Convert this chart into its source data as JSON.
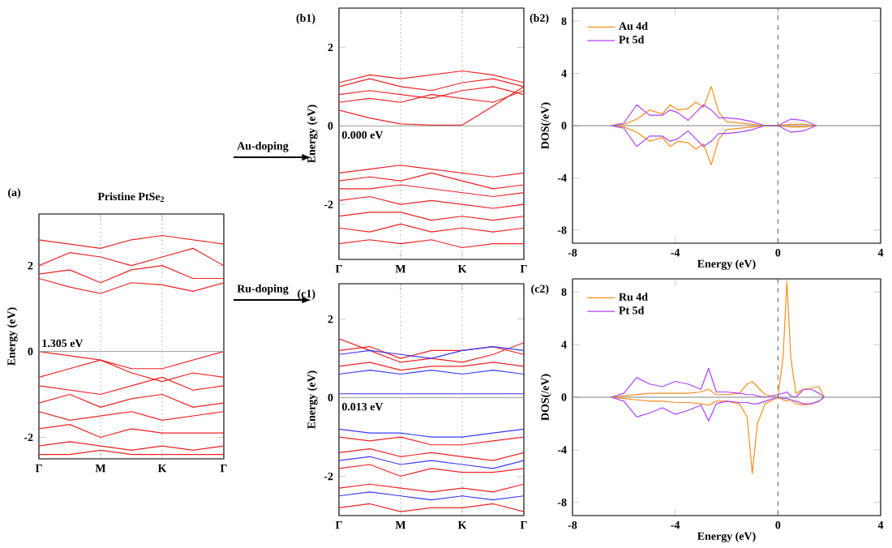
{
  "chart_data": [
    {
      "type": "line",
      "title": "Pristine PtSe$_{2}$",
      "subtitle": "(a)",
      "ylabel": "Energy (eV)",
      "annotations": [
        "1.305 eV",
        "Au-doping",
        "Ru-doping"
      ],
      "categories": [
        "Γ",
        null,
        "M",
        null,
        "K",
        null,
        "Γ"
      ],
      "ylim": [
        -2.5,
        3.2
      ],
      "yticks": [
        -2,
        0,
        2
      ],
      "ref_lines": [
        {
          "axis": "x",
          "value": "M",
          "color": "#808080",
          "line_style": "dotted"
        },
        {
          "axis": "x",
          "value": "K",
          "color": "#808080",
          "line_style": "dotted"
        },
        {
          "axis": "y",
          "value": 0,
          "color": "#a0a0a0",
          "line_style": "solid"
        }
      ],
      "series": [
        {
          "color": "#ee2222",
          "values": [
            1.7,
            1.5,
            1.35,
            1.6,
            1.55,
            1.4,
            1.6
          ]
        },
        {
          "color": "#ee2222",
          "values": [
            1.8,
            1.9,
            1.6,
            1.9,
            2.0,
            1.7,
            1.7
          ]
        },
        {
          "color": "#ee2222",
          "values": [
            2.0,
            2.3,
            2.2,
            2.0,
            2.2,
            2.4,
            2.0
          ]
        },
        {
          "color": "#ee2222",
          "values": [
            2.6,
            2.5,
            2.4,
            2.6,
            2.7,
            2.6,
            2.5
          ]
        },
        {
          "color": "#ee2222",
          "values": [
            0,
            -0.1,
            -0.2,
            -0.4,
            -0.4,
            -0.2,
            0
          ]
        },
        {
          "color": "#ee2222",
          "values": [
            -0.6,
            -0.4,
            -0.2,
            -0.5,
            -0.7,
            -0.5,
            -0.6
          ]
        },
        {
          "color": "#ee2222",
          "values": [
            -0.8,
            -0.9,
            -1.0,
            -0.8,
            -0.6,
            -0.9,
            -0.8
          ]
        },
        {
          "color": "#ee2222",
          "values": [
            -1.2,
            -1.0,
            -1.3,
            -1.1,
            -1.0,
            -1.3,
            -1.2
          ]
        },
        {
          "color": "#ee2222",
          "values": [
            -1.4,
            -1.6,
            -1.5,
            -1.4,
            -1.6,
            -1.5,
            -1.4
          ]
        },
        {
          "color": "#ee2222",
          "values": [
            -1.8,
            -1.7,
            -2.0,
            -1.8,
            -1.9,
            -1.9,
            -1.9
          ]
        },
        {
          "color": "#ee2222",
          "values": [
            -2.2,
            -2.1,
            -2.2,
            -2.3,
            -2.2,
            -2.3,
            -2.2
          ]
        },
        {
          "color": "#ee2222",
          "values": [
            -2.4,
            -2.4,
            -2.3,
            -2.4,
            -2.4,
            -2.4,
            -2.4
          ]
        }
      ]
    },
    {
      "type": "line",
      "subtitle": "(b1)",
      "ylabel": "Energy (eV)",
      "annotations": [
        "0.000 eV"
      ],
      "categories": [
        "Γ",
        null,
        "M",
        null,
        "K",
        null,
        "Γ"
      ],
      "ylim": [
        -3.4,
        3
      ],
      "yticks": [
        -2,
        0,
        2
      ],
      "ref_lines": [
        {
          "axis": "x",
          "value": "M",
          "color": "#808080",
          "line_style": "dotted"
        },
        {
          "axis": "x",
          "value": "K",
          "color": "#808080",
          "line_style": "dotted"
        },
        {
          "axis": "y",
          "value": 0,
          "color": "#a0a0a0",
          "line_style": "solid"
        }
      ],
      "series": [
        {
          "color": "#ee2222",
          "values": [
            0.4,
            0.2,
            0.05,
            0.02,
            0.02,
            0.5,
            1.0
          ]
        },
        {
          "color": "#ee2222",
          "values": [
            0.8,
            0.9,
            0.8,
            0.7,
            0.9,
            1.0,
            0.8
          ]
        },
        {
          "color": "#ee2222",
          "values": [
            1.0,
            1.2,
            1.0,
            0.9,
            1.1,
            1.2,
            1.0
          ]
        },
        {
          "color": "#ee2222",
          "values": [
            0.6,
            0.7,
            0.6,
            0.8,
            0.7,
            0.6,
            0.9
          ]
        },
        {
          "color": "#ee2222",
          "values": [
            1.1,
            1.3,
            1.2,
            1.3,
            1.4,
            1.3,
            1.1
          ]
        },
        {
          "color": "#ee2222",
          "values": [
            -1.2,
            -1.1,
            -1.0,
            -1.1,
            -1.2,
            -1.3,
            -1.2
          ]
        },
        {
          "color": "#ee2222",
          "values": [
            -1.4,
            -1.3,
            -1.4,
            -1.2,
            -1.4,
            -1.6,
            -1.5
          ]
        },
        {
          "color": "#ee2222",
          "values": [
            -1.6,
            -1.6,
            -1.5,
            -1.6,
            -1.7,
            -1.8,
            -1.7
          ]
        },
        {
          "color": "#ee2222",
          "values": [
            -1.9,
            -1.8,
            -2.0,
            -1.9,
            -2.0,
            -2.1,
            -2.0
          ]
        },
        {
          "color": "#ee2222",
          "values": [
            -2.3,
            -2.2,
            -2.2,
            -2.4,
            -2.3,
            -2.4,
            -2.3
          ]
        },
        {
          "color": "#ee2222",
          "values": [
            -2.6,
            -2.7,
            -2.5,
            -2.7,
            -2.6,
            -2.7,
            -2.6
          ]
        },
        {
          "color": "#ee2222",
          "values": [
            -3.0,
            -2.9,
            -3.0,
            -2.9,
            -3.1,
            -3.0,
            -3.0
          ]
        }
      ]
    },
    {
      "type": "line",
      "subtitle": "(b2)",
      "xlabel": "Energy (eV)",
      "ylabel": "DOS(/eV)",
      "legend": "top left",
      "x": [
        -6.5,
        -6,
        -5.5,
        -5,
        -4.5,
        -4.2,
        -3.9,
        -3.5,
        -3.2,
        -2.9,
        -2.6,
        -2.3,
        -2,
        -1.5,
        -1,
        -0.5,
        0,
        0.5,
        1,
        1.5
      ],
      "xlim": [
        -8,
        4
      ],
      "xticks": [
        -8,
        -4,
        0,
        4
      ],
      "ylim": [
        -9,
        9
      ],
      "yticks": [
        -8,
        -4,
        0,
        4,
        8
      ],
      "ref_lines": [
        {
          "axis": "x",
          "value": 0,
          "color": "#606060",
          "line_style": "dashed"
        },
        {
          "axis": "y",
          "value": 0,
          "color": "#808080",
          "line_style": "solid"
        }
      ],
      "series": [
        {
          "name": "Au   4d",
          "color": "#ff8c1a",
          "values": [
            0,
            0.1,
            0.5,
            1.2,
            0.9,
            1.6,
            1.2,
            1.3,
            1.8,
            1.4,
            3.0,
            1.0,
            0.3,
            0.2,
            0.1,
            0,
            0,
            0.1,
            0.1,
            0
          ]
        },
        {
          "name": "Pt   5d",
          "color": "#b040ff",
          "values": [
            0,
            0.2,
            1.6,
            0.8,
            0.8,
            1.2,
            1.0,
            0.4,
            1.0,
            1.6,
            1.2,
            0.6,
            0.6,
            0.5,
            0.3,
            0,
            0,
            0.5,
            0.4,
            0
          ]
        },
        {
          "color": "#ff8c1a",
          "values": [
            0,
            -0.1,
            -0.5,
            -1.2,
            -0.9,
            -1.6,
            -1.2,
            -1.3,
            -1.8,
            -1.4,
            -3.0,
            -1.0,
            -0.3,
            -0.2,
            -0.1,
            0,
            0,
            -0.1,
            -0.1,
            0
          ]
        },
        {
          "color": "#b040ff",
          "values": [
            0,
            -0.2,
            -1.6,
            -0.8,
            -0.8,
            -1.2,
            -1.0,
            -0.4,
            -1.0,
            -1.6,
            -1.2,
            -0.6,
            -0.6,
            -0.5,
            -0.3,
            0,
            0,
            -0.5,
            -0.4,
            0
          ]
        }
      ]
    },
    {
      "type": "line",
      "subtitle": "(c1)",
      "ylabel": "Energy (eV)",
      "annotations": [
        "0.013 eV"
      ],
      "categories": [
        "Γ",
        null,
        "M",
        null,
        "K",
        null,
        "Γ"
      ],
      "ylim": [
        -3,
        2.9
      ],
      "yticks": [
        -2,
        0,
        2
      ],
      "ref_lines": [
        {
          "axis": "x",
          "value": "M",
          "color": "#808080",
          "line_style": "dotted"
        },
        {
          "axis": "x",
          "value": "K",
          "color": "#808080",
          "line_style": "dotted"
        },
        {
          "axis": "y",
          "value": 0,
          "color": "#a0a0a0",
          "line_style": "solid"
        }
      ],
      "series": [
        {
          "color": "#ee2222",
          "values": [
            1.5,
            1.2,
            0.9,
            1.0,
            0.9,
            1.1,
            1.4
          ]
        },
        {
          "color": "#ee2222",
          "values": [
            0.8,
            0.9,
            0.7,
            0.8,
            0.8,
            0.9,
            0.8
          ]
        },
        {
          "color": "#ee2222",
          "values": [
            1.2,
            1.3,
            1.0,
            1.2,
            1.2,
            1.3,
            1.1
          ]
        },
        {
          "color": "#ee2222",
          "values": [
            -1.0,
            -1.1,
            -1.0,
            -1.2,
            -1.2,
            -1.1,
            -1.0
          ]
        },
        {
          "color": "#ee2222",
          "values": [
            -1.4,
            -1.3,
            -1.5,
            -1.4,
            -1.5,
            -1.6,
            -1.4
          ]
        },
        {
          "color": "#ee2222",
          "values": [
            -1.8,
            -1.7,
            -2.0,
            -1.8,
            -1.9,
            -1.9,
            -1.8
          ]
        },
        {
          "color": "#ee2222",
          "values": [
            -2.3,
            -2.2,
            -2.3,
            -2.4,
            -2.3,
            -2.4,
            -2.2
          ]
        },
        {
          "color": "#ee2222",
          "values": [
            -2.8,
            -2.7,
            -2.9,
            -2.8,
            -2.8,
            -2.7,
            -2.9
          ]
        },
        {
          "color": "#3a3aff",
          "values": [
            1.1,
            1.2,
            1.1,
            1.0,
            1.2,
            1.3,
            1.2
          ]
        },
        {
          "color": "#3a3aff",
          "values": [
            0.6,
            0.7,
            0.6,
            0.7,
            0.6,
            0.7,
            0.6
          ]
        },
        {
          "color": "#3a3aff",
          "values": [
            0.1,
            0.1,
            0.1,
            0.1,
            0.1,
            0.1,
            0.1
          ]
        },
        {
          "color": "#3a3aff",
          "values": [
            -0.8,
            -0.9,
            -0.9,
            -1.0,
            -1.0,
            -0.9,
            -0.8
          ]
        },
        {
          "color": "#3a3aff",
          "values": [
            -1.6,
            -1.5,
            -1.7,
            -1.6,
            -1.7,
            -1.8,
            -1.6
          ]
        },
        {
          "color": "#3a3aff",
          "values": [
            -2.5,
            -2.4,
            -2.5,
            -2.6,
            -2.5,
            -2.6,
            -2.5
          ]
        }
      ]
    },
    {
      "type": "line",
      "subtitle": "(c2)",
      "xlabel": "Energy (eV)",
      "ylabel": "DOS(/eV)",
      "legend": "top left",
      "x": [
        -6.5,
        -6,
        -5.5,
        -5,
        -4.5,
        -4,
        -3.5,
        -3,
        -2.7,
        -2.4,
        -2,
        -1.5,
        -1.2,
        -1,
        -0.8,
        -0.5,
        0,
        0.2,
        0.35,
        0.5,
        0.7,
        1,
        1.3,
        1.6,
        1.8
      ],
      "xlim": [
        -8,
        4
      ],
      "xticks": [
        -8,
        -4,
        0,
        4
      ],
      "ylim": [
        -9,
        9
      ],
      "yticks": [
        -8,
        -4,
        0,
        4,
        8
      ],
      "ref_lines": [
        {
          "axis": "x",
          "value": 0,
          "color": "#606060",
          "line_style": "dashed"
        },
        {
          "axis": "y",
          "value": 0,
          "color": "#808080",
          "line_style": "solid"
        }
      ],
      "series": [
        {
          "name": "Ru   4d",
          "color": "#ff8c1a",
          "values": [
            0,
            0.1,
            0.2,
            0.3,
            0.3,
            0.3,
            0.3,
            0.4,
            0.6,
            0.2,
            0.2,
            0.3,
            1.0,
            1.2,
            0.8,
            0.2,
            0,
            3.0,
            8.8,
            3.0,
            0.3,
            0.6,
            0.7,
            0.8,
            0
          ]
        },
        {
          "name": "Pt   5d",
          "color": "#b040ff",
          "values": [
            0,
            0.3,
            1.5,
            1.0,
            0.8,
            1.2,
            1.0,
            0.6,
            2.2,
            0.4,
            0.4,
            0.3,
            0.2,
            0.2,
            0.1,
            0,
            0.2,
            0.3,
            0.4,
            0.1,
            0,
            0.6,
            0.6,
            0.3,
            0
          ]
        },
        {
          "color": "#ff8c1a",
          "values": [
            0,
            -0.1,
            -0.2,
            -0.3,
            -0.3,
            -0.4,
            -0.4,
            -0.5,
            -0.6,
            -0.3,
            -0.3,
            -0.5,
            -1.5,
            -5.8,
            -2.0,
            -0.5,
            0,
            -0.2,
            -0.3,
            -0.2,
            -0.5,
            -0.6,
            -0.5,
            -0.3,
            0
          ]
        },
        {
          "color": "#b040ff",
          "values": [
            0,
            -0.3,
            -1.5,
            -1.2,
            -0.8,
            -1.3,
            -1.0,
            -0.6,
            -1.8,
            -0.5,
            -0.3,
            -0.4,
            -0.4,
            -0.5,
            -0.5,
            -0.3,
            0,
            -0.1,
            -0.1,
            -0.2,
            -0.3,
            -0.5,
            -0.5,
            -0.3,
            0
          ]
        }
      ]
    }
  ]
}
